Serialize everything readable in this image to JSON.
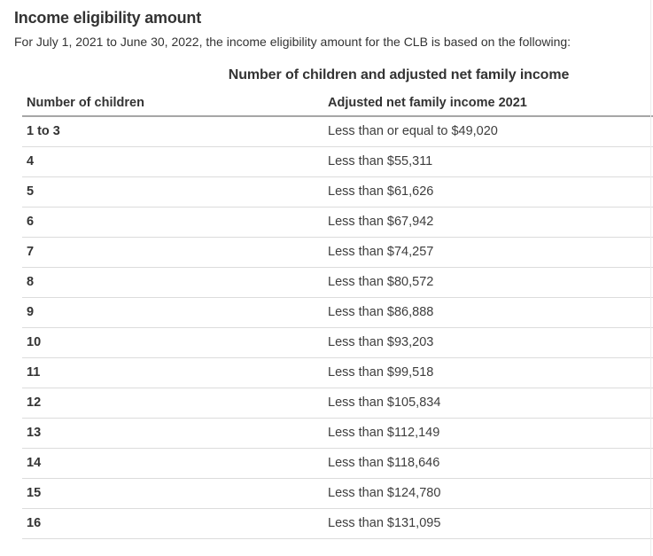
{
  "page": {
    "title": "Income eligibility amount",
    "intro": "For July 1, 2021 to June 30, 2022, the income eligibility amount for the CLB is based on the following:"
  },
  "table": {
    "caption": "Number of children and adjusted net family income",
    "columns": [
      "Number of children",
      "Adjusted net family income 2021"
    ],
    "rows": [
      [
        "1 to 3",
        "Less than or equal to $49,020"
      ],
      [
        "4",
        "Less than $55,311"
      ],
      [
        "5",
        "Less than $61,626"
      ],
      [
        "6",
        "Less than $67,942"
      ],
      [
        "7",
        "Less than $74,257"
      ],
      [
        "8",
        "Less than $80,572"
      ],
      [
        "9",
        "Less than $86,888"
      ],
      [
        "10",
        "Less than $93,203"
      ],
      [
        "11",
        "Less than $99,518"
      ],
      [
        "12",
        "Less than $105,834"
      ],
      [
        "13",
        "Less than $112,149"
      ],
      [
        "14",
        "Less than $118,646"
      ],
      [
        "15",
        "Less than $124,780"
      ],
      [
        "16",
        "Less than $131,095"
      ]
    ]
  },
  "colors": {
    "text": "#333333",
    "header_border": "#a6a6a6",
    "row_border": "#dcdcdc",
    "edge_line": "#ececec"
  }
}
